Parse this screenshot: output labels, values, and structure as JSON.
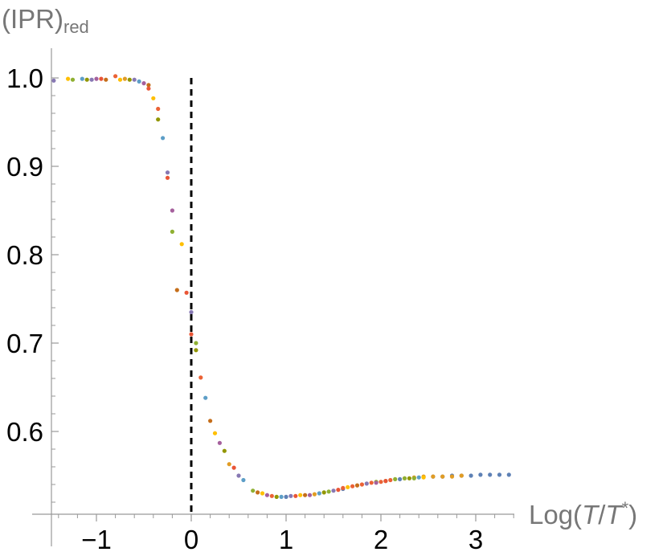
{
  "chart_data": {
    "type": "scatter",
    "title": "",
    "ylabel": {
      "base": "(IPR)",
      "subscript": "red"
    },
    "xlabel": {
      "prefix": "Log(",
      "numerator": "T",
      "slash": "/",
      "denominator": "T",
      "superscript": "*",
      "suffix": ")"
    },
    "xlim": [
      -1.5,
      3.45
    ],
    "ylim": [
      0.5,
      1.03
    ],
    "x_ticks": [
      -1,
      0,
      1,
      2,
      3
    ],
    "x_tick_labels": [
      "−1",
      "0",
      "1",
      "2",
      "3"
    ],
    "y_ticks": [
      0.6,
      0.7,
      0.8,
      0.9,
      1.0
    ],
    "y_tick_labels": [
      "0.6",
      "0.7",
      "0.8",
      "0.9",
      "1.0"
    ],
    "reference_line": {
      "x": 0,
      "y_range": [
        0.5,
        1.0
      ],
      "style": "dashed",
      "color": "#000000"
    },
    "grid": false,
    "legend": "none",
    "colors": [
      "#5e81b5",
      "#e19c24",
      "#8fb032",
      "#eb6235",
      "#8778b3",
      "#c56e1a",
      "#5d9ec7",
      "#ffbf00",
      "#a5609d",
      "#929600",
      "#e95536"
    ],
    "series": [
      {
        "color": "#5e81b5",
        "points": [
          [
            2.55,
            0.549
          ],
          [
            2.65,
            0.549
          ],
          [
            2.75,
            0.55
          ],
          [
            2.85,
            0.55
          ],
          [
            2.95,
            0.55
          ],
          [
            3.05,
            0.551
          ],
          [
            3.15,
            0.551
          ],
          [
            3.25,
            0.551
          ],
          [
            3.35,
            0.551
          ],
          [
            1.0,
            0.526
          ],
          [
            1.6,
            0.535
          ],
          [
            2.2,
            0.546
          ]
        ]
      },
      {
        "color": "#e19c24",
        "points": [
          [
            2.25,
            0.547
          ],
          [
            2.35,
            0.548
          ],
          [
            2.45,
            0.549
          ],
          [
            2.55,
            0.549
          ],
          [
            2.65,
            0.549
          ],
          [
            2.75,
            0.549
          ],
          [
            2.85,
            0.55
          ],
          [
            -0.7,
            0.999
          ],
          [
            0.4,
            0.563
          ],
          [
            1.3,
            0.529
          ]
        ]
      },
      {
        "color": "#8fb032",
        "points": [
          [
            1.95,
            0.543
          ],
          [
            2.05,
            0.544
          ],
          [
            2.15,
            0.546
          ],
          [
            2.25,
            0.547
          ],
          [
            2.35,
            0.547
          ],
          [
            -1.25,
            0.998
          ],
          [
            -0.2,
            0.826
          ],
          [
            0.05,
            0.7
          ],
          [
            0.65,
            0.533
          ],
          [
            1.45,
            0.532
          ]
        ]
      },
      {
        "color": "#eb6235",
        "points": [
          [
            1.6,
            0.536
          ],
          [
            1.7,
            0.538
          ],
          [
            1.8,
            0.54
          ],
          [
            1.9,
            0.542
          ],
          [
            2.0,
            0.543
          ],
          [
            2.1,
            0.545
          ],
          [
            -0.8,
            1.002
          ],
          [
            -0.35,
            0.965
          ],
          [
            0.1,
            0.661
          ],
          [
            0.85,
            0.527
          ]
        ]
      },
      {
        "color": "#8778b3",
        "points": [
          [
            -1.45,
            0.997
          ],
          [
            -1.05,
            0.998
          ],
          [
            -0.6,
            0.998
          ],
          [
            -0.25,
            0.893
          ],
          [
            0.0,
            0.735
          ],
          [
            0.5,
            0.55
          ],
          [
            1.05,
            0.527
          ],
          [
            1.5,
            0.533
          ],
          [
            1.85,
            0.541
          ]
        ]
      },
      {
        "color": "#c56e1a",
        "points": [
          [
            -0.9,
            0.998
          ],
          [
            -0.45,
            0.992
          ],
          [
            -0.15,
            0.76
          ],
          [
            0.2,
            0.612
          ],
          [
            0.7,
            0.531
          ],
          [
            1.2,
            0.528
          ],
          [
            1.75,
            0.539
          ]
        ]
      },
      {
        "color": "#5d9ec7",
        "points": [
          [
            -1.15,
            0.999
          ],
          [
            -0.55,
            0.996
          ],
          [
            -0.3,
            0.932
          ],
          [
            0.15,
            0.638
          ],
          [
            0.55,
            0.545
          ],
          [
            0.95,
            0.526
          ],
          [
            1.35,
            0.53
          ],
          [
            2.4,
            0.548
          ]
        ]
      },
      {
        "color": "#ffbf00",
        "points": [
          [
            -1.3,
            0.999
          ],
          [
            -0.75,
            0.998
          ],
          [
            -0.4,
            0.977
          ],
          [
            -0.1,
            0.812
          ],
          [
            0.25,
            0.598
          ],
          [
            0.75,
            0.53
          ],
          [
            1.15,
            0.528
          ],
          [
            1.65,
            0.537
          ],
          [
            2.45,
            0.548
          ]
        ]
      },
      {
        "color": "#a5609d",
        "points": [
          [
            -1.0,
            0.999
          ],
          [
            -0.5,
            0.994
          ],
          [
            -0.2,
            0.85
          ],
          [
            0.3,
            0.587
          ],
          [
            0.8,
            0.528
          ],
          [
            1.25,
            0.528
          ],
          [
            1.95,
            0.542
          ]
        ]
      },
      {
        "color": "#929600",
        "points": [
          [
            -1.1,
            0.998
          ],
          [
            -0.65,
            0.998
          ],
          [
            -0.35,
            0.953
          ],
          [
            0.05,
            0.692
          ],
          [
            0.35,
            0.578
          ],
          [
            0.9,
            0.526
          ],
          [
            1.4,
            0.531
          ],
          [
            2.3,
            0.547
          ]
        ]
      },
      {
        "color": "#e95536",
        "points": [
          [
            -0.95,
            0.999
          ],
          [
            -0.45,
            0.988
          ],
          [
            -0.25,
            0.887
          ],
          [
            -0.05,
            0.757
          ],
          [
            0.0,
            0.71
          ],
          [
            0.45,
            0.559
          ],
          [
            1.1,
            0.527
          ],
          [
            1.55,
            0.534
          ],
          [
            2.05,
            0.544
          ]
        ]
      }
    ]
  }
}
